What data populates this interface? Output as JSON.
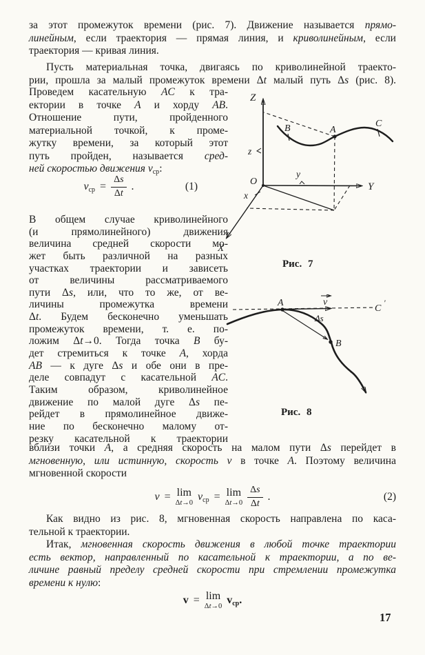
{
  "page": {
    "number": "17"
  },
  "paragraphs": {
    "p1": {
      "lines": [
        {
          "t": "за этот промежуток времени (рис. 7). Движение называется *прямо-*"
        },
        {
          "t": "*линейным*, если траектория — прямая линия, и *криволинейным*, если"
        },
        {
          "t": "траектория — кривая линия.",
          "last": true
        }
      ]
    },
    "p2full": {
      "lines": [
        {
          "t": "Пусть материальная точка, двигаясь по криволинейной траекто-",
          "ind": true
        },
        {
          "t": "рии, прошла за малый промежуток времени Δ*t* малый путь Δ*s* (рис. 8)."
        }
      ]
    },
    "p2col": {
      "lines": [
        {
          "t": "Проведем касательную *AC* к тра-"
        },
        {
          "t": "ектории в точке *A* и хорду *AB*."
        },
        {
          "t": "Отношение пути, пройденного"
        },
        {
          "t": "материальной точкой, к проме-"
        },
        {
          "t": "жутку времени, за который этот"
        },
        {
          "t": "путь пройден, называется *сред-*"
        },
        {
          "t": "*ней скоростью движения v*~ср~:",
          "last": true
        }
      ]
    },
    "p3col": {
      "lines": [
        {
          "t": "В общем случае криволинейного"
        },
        {
          "t": "(и прямолинейного) движения"
        },
        {
          "t": "величина средней скорости мо-"
        },
        {
          "t": "жет быть различной на разных"
        },
        {
          "t": "участках траектории и зависеть"
        },
        {
          "t": "от величины рассматриваемого"
        },
        {
          "t": "пути Δ*s*, или, что то же, от ве-"
        },
        {
          "t": "личины промежутка времени"
        },
        {
          "t": "Δ*t*. Будем бесконечно уменьшать"
        },
        {
          "t": "промежуток времени, т. е. по-"
        },
        {
          "t": "ложим Δ*t*→0. Тогда точка *B* бу-"
        },
        {
          "t": "дет стремиться к точке *A*, хорда"
        },
        {
          "t": "*AB* — к дуге Δ*s* и обе они в пре-"
        },
        {
          "t": "деле совпадут с касательной *AC*."
        },
        {
          "t": "Таким образом, криволинейное"
        },
        {
          "t": "движение по малой дуге Δ*s* пе-"
        },
        {
          "t": "рейдет в прямолинейное движе-"
        },
        {
          "t": "ние по бесконечно малому от-"
        },
        {
          "t": "резку касательной к траектории"
        }
      ]
    },
    "p3full": {
      "lines": [
        {
          "t": "вблизи точки *A*, а средняя скорость на малом пути Δ*s* перейдет в"
        },
        {
          "t": "*мгновенную, или истинную, скорость v* в точке *A*. Поэтому величина"
        },
        {
          "t": "мгновенной скорости",
          "last": true
        }
      ]
    },
    "p4": {
      "lines": [
        {
          "t": "Как видно из рис. 8, мгновенная скорость направлена по каса-",
          "ind": true
        },
        {
          "t": "тельной к траектории.",
          "last": true
        }
      ]
    },
    "p5": {
      "lines": [
        {
          "t": "Итак, *мгновенная скорость движения в любой точке траектории*",
          "ind": true
        },
        {
          "t": "*есть вектор, направленный по касательной к траектории, а по ве-*"
        },
        {
          "t": "*личине равный пределу средней скорости при стремлении промежутка*"
        },
        {
          "t": "*времени к нулю*:",
          "last": true
        }
      ]
    }
  },
  "formulas": {
    "f1": {
      "lhs": "*v*~ср~",
      "eq": "=",
      "num": "Δ*s*",
      "den": "Δ*t*",
      "dot": ".",
      "tag": "(1)"
    },
    "f2": {
      "lhs": "*v*",
      "eq1": "=",
      "lim1": "lim",
      "limsub1": "Δ*t*→0",
      "mid": "*v*~ср~",
      "eq2": "=",
      "lim2": "lim",
      "limsub2": "Δ*t*→0",
      "num": "Δ*s*",
      "den": "Δ*t*",
      "dot": ".",
      "tag": "(2)"
    },
    "f3": {
      "lhs": "v",
      "eq": "=",
      "lim": "lim",
      "limsub": "Δ*t*→0",
      "rhs": "v~ср~."
    }
  },
  "figures": {
    "fig7": {
      "caption": "Рис. 7",
      "axis_z": "Z",
      "axis_y": "Y",
      "axis_x": "X",
      "origin": "O",
      "coord_z": "z",
      "coord_y": "y",
      "coord_x": "x",
      "point_a": "A",
      "point_b": "B",
      "point_c": "C"
    },
    "fig8": {
      "caption": "Рис. 8",
      "point_a": "A",
      "point_b": "B",
      "point_c": "C",
      "prime": "'",
      "arc": "Δs",
      "velocity": "v"
    }
  }
}
